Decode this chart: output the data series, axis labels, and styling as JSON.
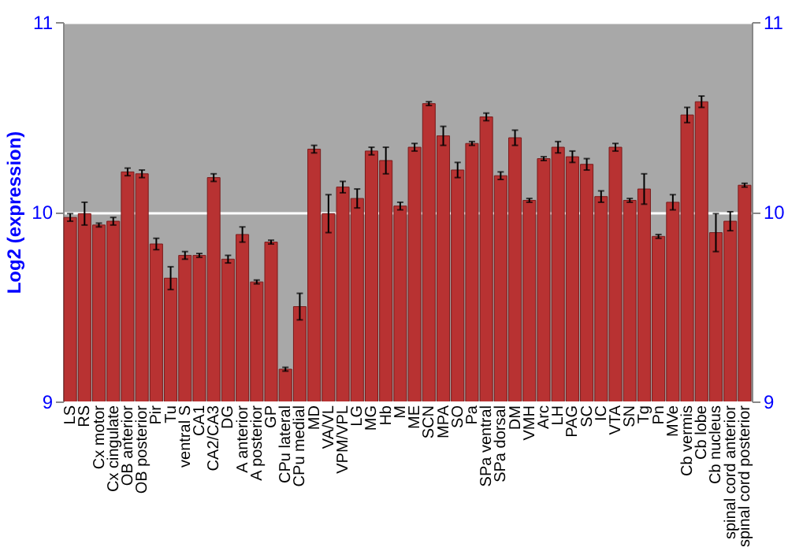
{
  "chart_data": {
    "type": "bar",
    "ylabel": "Log2 (expression)",
    "categories": [
      "LS",
      "RS",
      "Cx motor",
      "Cx cingulate",
      "OB anterior",
      "OB posterior",
      "Pir",
      "Tu",
      "ventral S",
      "CA1",
      "CA2/CA3",
      "DG",
      "A anterior",
      "A posterior",
      "GP",
      "CPu lateral",
      "CPu medial",
      "MD",
      "VA/VL",
      "VPM/VPL",
      "LG",
      "MG",
      "Hb",
      "M",
      "ME",
      "SCN",
      "MPA",
      "SO",
      "Pa",
      "SPa ventral",
      "SPa dorsal",
      "DM",
      "VMH",
      "Arc",
      "LH",
      "PAG",
      "SC",
      "IC",
      "VTA",
      "SN",
      "Tg",
      "Pn",
      "MVe",
      "Cb vermis",
      "Cb lobe",
      "Cb nucleus",
      "spinal cord anterior",
      "spinal cord posterior"
    ],
    "series": [
      {
        "color": "#b83232",
        "values": [
          9.97,
          9.99,
          9.93,
          9.95,
          10.21,
          10.2,
          9.83,
          9.65,
          9.77,
          9.77,
          10.18,
          9.75,
          9.88,
          9.63,
          9.84,
          9.17,
          9.5,
          10.33,
          9.99,
          10.13,
          10.07,
          10.32,
          10.27,
          10.03,
          10.34,
          10.57,
          10.4,
          10.22,
          10.36,
          10.5,
          10.19,
          10.39,
          10.06,
          10.28,
          10.34,
          10.29,
          10.25,
          10.08,
          10.34,
          10.06,
          10.12,
          9.87,
          10.05,
          10.51,
          10.58,
          9.89,
          9.95,
          10.14
        ],
        "errors": [
          0.02,
          0.06,
          0.01,
          0.02,
          0.02,
          0.02,
          0.03,
          0.06,
          0.02,
          0.01,
          0.02,
          0.02,
          0.04,
          0.01,
          0.01,
          0.01,
          0.07,
          0.02,
          0.1,
          0.03,
          0.05,
          0.02,
          0.07,
          0.02,
          0.02,
          0.01,
          0.05,
          0.04,
          0.01,
          0.02,
          0.02,
          0.04,
          0.01,
          0.01,
          0.03,
          0.03,
          0.03,
          0.03,
          0.02,
          0.01,
          0.08,
          0.01,
          0.04,
          0.04,
          0.03,
          0.1,
          0.05,
          0.01
        ]
      }
    ],
    "ylim": [
      9,
      11
    ],
    "yticks": [
      9,
      10,
      11
    ],
    "y2lim": [
      9,
      11
    ],
    "y2ticks": [
      9,
      10,
      11
    ],
    "grid": "y"
  }
}
